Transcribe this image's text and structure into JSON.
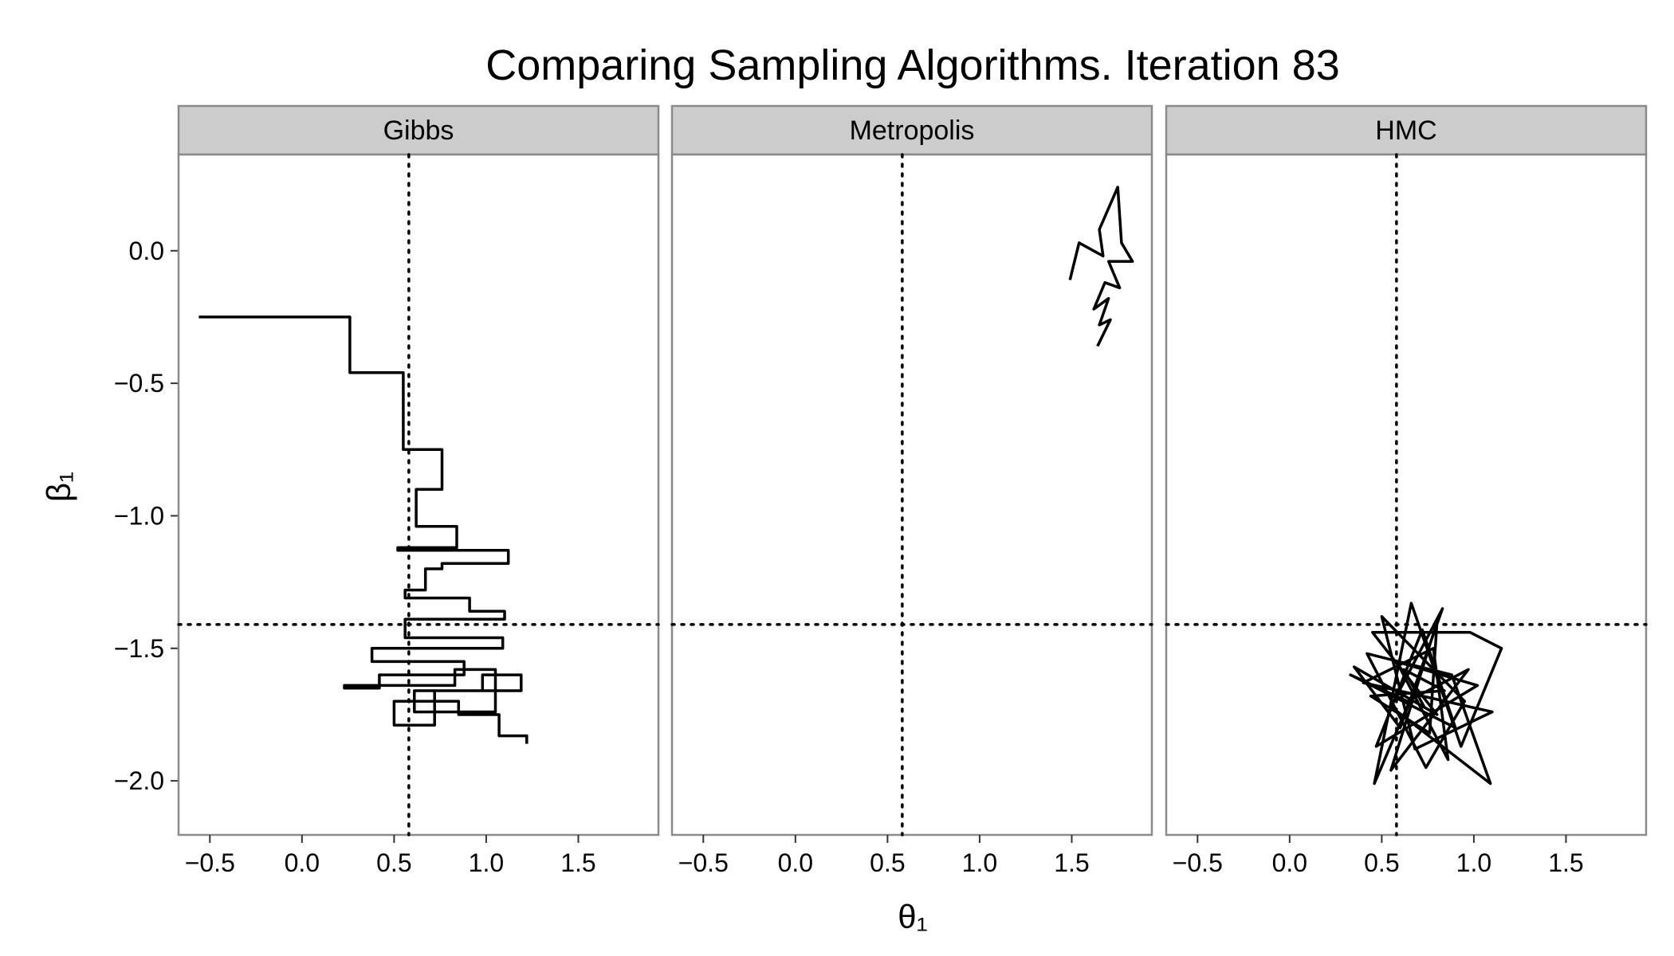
{
  "chart_data": {
    "type": "line",
    "title": "Comparing Sampling Algorithms. Iteration 83",
    "x_label": "θ₁",
    "y_label": "β₁",
    "xlim": [
      -0.67,
      1.935
    ],
    "ylim": [
      -2.204,
      0.363
    ],
    "xticks": [
      {
        "value": -0.5,
        "label": "−0.5"
      },
      {
        "value": 0,
        "label": "0.0"
      },
      {
        "value": 0.5,
        "label": "0.5"
      },
      {
        "value": 1,
        "label": "1.0"
      },
      {
        "value": 1.5,
        "label": "1.5"
      }
    ],
    "yticks": [
      {
        "value": 0,
        "label": "0.0"
      },
      {
        "value": -0.5,
        "label": "−0.5"
      },
      {
        "value": -1,
        "label": "−1.0"
      },
      {
        "value": -1.5,
        "label": "−1.5"
      },
      {
        "value": -2,
        "label": "−2.0"
      }
    ],
    "ref_x": 0.58,
    "ref_y": -1.41,
    "color": "#000000",
    "panels": [
      {
        "name": "Gibbs",
        "x": [
          -0.56,
          0.26,
          0.26,
          0.55,
          0.55,
          0.76,
          0.76,
          0.62,
          0.62,
          0.84,
          0.84,
          0.52,
          0.52,
          1.12,
          1.12,
          0.76,
          0.76,
          0.67,
          0.67,
          0.56,
          0.56,
          0.91,
          0.91,
          1.1,
          1.1,
          0.56,
          0.56,
          1.09,
          1.09,
          0.38,
          0.38,
          0.88,
          0.88,
          0.42,
          0.42,
          0.23,
          0.23,
          0.83,
          0.83,
          1.05,
          1.05,
          0.61,
          0.61,
          0.98,
          0.98,
          1.19,
          1.19,
          0.72,
          0.72,
          0.5,
          0.5,
          0.85,
          0.85,
          1.07,
          1.07,
          1.22,
          1.22
        ],
        "y": [
          -0.25,
          -0.25,
          -0.46,
          -0.46,
          -0.75,
          -0.75,
          -0.9,
          -0.9,
          -1.04,
          -1.04,
          -1.12,
          -1.12,
          -1.13,
          -1.13,
          -1.18,
          -1.18,
          -1.2,
          -1.2,
          -1.28,
          -1.28,
          -1.31,
          -1.31,
          -1.36,
          -1.36,
          -1.39,
          -1.39,
          -1.46,
          -1.46,
          -1.5,
          -1.5,
          -1.55,
          -1.55,
          -1.6,
          -1.6,
          -1.65,
          -1.65,
          -1.64,
          -1.64,
          -1.58,
          -1.58,
          -1.74,
          -1.74,
          -1.66,
          -1.66,
          -1.6,
          -1.6,
          -1.66,
          -1.66,
          -1.79,
          -1.79,
          -1.7,
          -1.7,
          -1.75,
          -1.75,
          -1.83,
          -1.83,
          -1.86
        ]
      },
      {
        "name": "Metropolis",
        "x": [
          1.49,
          1.54,
          1.67,
          1.65,
          1.75,
          1.77,
          1.83,
          1.7,
          1.76,
          1.68,
          1.62,
          1.7,
          1.65,
          1.71,
          1.64
        ],
        "y": [
          -0.11,
          0.03,
          -0.02,
          0.08,
          0.24,
          0.03,
          -0.04,
          -0.04,
          -0.14,
          -0.12,
          -0.22,
          -0.18,
          -0.28,
          -0.26,
          -0.36
        ]
      },
      {
        "name": "HMC",
        "x": [
          0.7,
          0.46,
          0.66,
          0.93,
          1.15,
          0.98,
          0.45,
          0.8,
          0.35,
          0.6,
          0.83,
          0.55,
          1.09,
          0.88,
          0.42,
          0.74,
          0.95,
          0.5,
          0.68,
          1.1,
          0.4,
          0.78,
          0.86,
          0.58,
          1.02,
          0.47,
          0.72,
          0.9,
          0.33,
          0.64,
          0.97,
          0.55,
          0.8,
          0.76,
          0.44,
          0.84,
          0.62,
          0.73
        ],
        "y": [
          -1.62,
          -2.01,
          -1.33,
          -1.87,
          -1.5,
          -1.44,
          -1.44,
          -1.75,
          -1.57,
          -1.8,
          -1.35,
          -1.72,
          -2.01,
          -1.6,
          -1.52,
          -1.95,
          -1.7,
          -1.38,
          -1.88,
          -1.74,
          -1.63,
          -1.5,
          -1.92,
          -1.55,
          -1.64,
          -1.87,
          -1.43,
          -1.8,
          -1.6,
          -1.7,
          -1.58,
          -1.96,
          -1.4,
          -1.82,
          -1.68,
          -1.66,
          -1.58,
          -1.72
        ]
      }
    ]
  }
}
